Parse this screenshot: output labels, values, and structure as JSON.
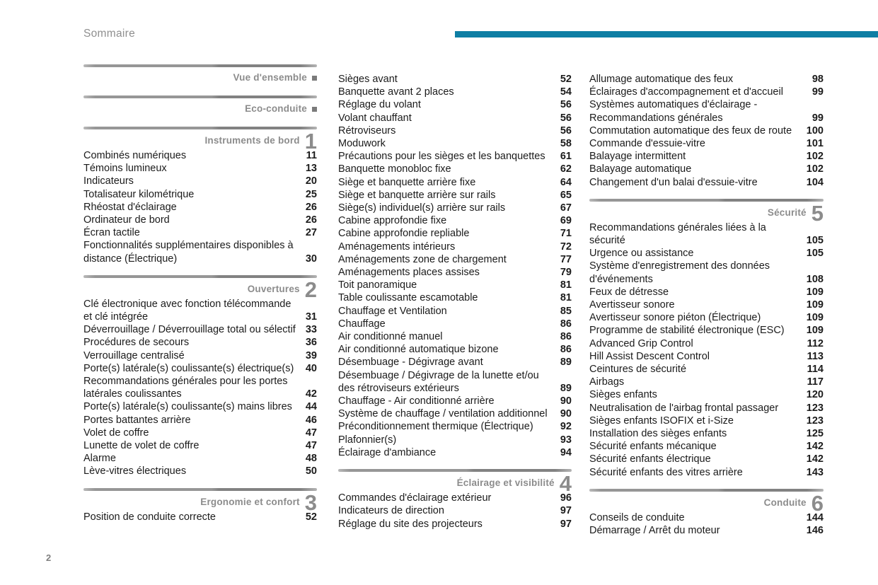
{
  "header": {
    "title": "Sommaire"
  },
  "footer": {
    "page_number": "2"
  },
  "accent_color": "#0e7ea4",
  "toc": {
    "columns": [
      {
        "blocks": [
          {
            "kind": "section",
            "title": "Vue d'ensemble",
            "marker": "square",
            "items": []
          },
          {
            "kind": "section",
            "title": "Eco-conduite",
            "marker": "square",
            "items": []
          },
          {
            "kind": "section",
            "title": "Instruments de bord",
            "number": "1",
            "items": [
              {
                "label": "Combinés numériques",
                "page": "11"
              },
              {
                "label": "Témoins lumineux",
                "page": "13"
              },
              {
                "label": "Indicateurs",
                "page": "20"
              },
              {
                "label": "Totalisateur kilométrique",
                "page": "25"
              },
              {
                "label": "Rhéostat d'éclairage",
                "page": "26"
              },
              {
                "label": "Ordinateur de bord",
                "page": "26"
              },
              {
                "label": "Écran tactile",
                "page": "27"
              },
              {
                "label": "Fonctionnalités supplémentaires disponibles à distance (Électrique)",
                "page": "30"
              }
            ]
          },
          {
            "kind": "section",
            "title": "Ouvertures",
            "number": "2",
            "items": [
              {
                "label": "Clé électronique avec fonction télécommande et clé intégrée",
                "page": "31"
              },
              {
                "label": "Déverrouillage / Déverrouillage total ou sélectif",
                "page": "33"
              },
              {
                "label": "Procédures de secours",
                "page": "36"
              },
              {
                "label": "Verrouillage centralisé",
                "page": "39"
              },
              {
                "label": "Porte(s) latérale(s) coulissante(s) électrique(s)",
                "page": "40"
              },
              {
                "label": "Recommandations générales pour les portes latérales coulissantes",
                "page": "42"
              },
              {
                "label": "Porte(s) latérale(s) coulissante(s) mains libres",
                "page": "44"
              },
              {
                "label": "Portes battantes arrière",
                "page": "46"
              },
              {
                "label": "Volet de coffre",
                "page": "47"
              },
              {
                "label": "Lunette de volet de coffre",
                "page": "47"
              },
              {
                "label": "Alarme",
                "page": "48"
              },
              {
                "label": "Lève-vitres électriques",
                "page": "50"
              }
            ]
          },
          {
            "kind": "section",
            "title": "Ergonomie et confort",
            "number": "3",
            "items": [
              {
                "label": "Position de conduite correcte",
                "page": "52"
              }
            ]
          }
        ]
      },
      {
        "blocks": [
          {
            "kind": "items",
            "items": [
              {
                "label": "Sièges avant",
                "page": "52"
              },
              {
                "label": "Banquette avant 2 places",
                "page": "54"
              },
              {
                "label": "Réglage du volant",
                "page": "56"
              },
              {
                "label": "Volant chauffant",
                "page": "56"
              },
              {
                "label": "Rétroviseurs",
                "page": "56"
              },
              {
                "label": "Moduwork",
                "page": "58"
              },
              {
                "label": "Précautions pour les sièges et les banquettes",
                "page": "61"
              },
              {
                "label": "Banquette monobloc fixe",
                "page": "62"
              },
              {
                "label": "Siège et banquette arrière fixe",
                "page": "64"
              },
              {
                "label": "Siège et banquette arrière sur rails",
                "page": "65"
              },
              {
                "label": "Siège(s) individuel(s) arrière sur rails",
                "page": "67"
              },
              {
                "label": "Cabine approfondie fixe",
                "page": "69"
              },
              {
                "label": "Cabine approfondie repliable",
                "page": "71"
              },
              {
                "label": "Aménagements intérieurs",
                "page": "72"
              },
              {
                "label": "Aménagements zone de chargement",
                "page": "77"
              },
              {
                "label": "Aménagements places assises",
                "page": "79"
              },
              {
                "label": "Toit panoramique",
                "page": "81"
              },
              {
                "label": "Table coulissante escamotable",
                "page": "81"
              },
              {
                "label": "Chauffage et Ventilation",
                "page": "85"
              },
              {
                "label": "Chauffage",
                "page": "86"
              },
              {
                "label": "Air conditionné manuel",
                "page": "86"
              },
              {
                "label": "Air conditionné automatique bizone",
                "page": "86"
              },
              {
                "label": "Désembuage - Dégivrage avant",
                "page": "89"
              },
              {
                "label": "Désembuage / Dégivrage de la lunette et/ou des rétroviseurs extérieurs",
                "page": "89"
              },
              {
                "label": "Chauffage - Air conditionné arrière",
                "page": "90"
              },
              {
                "label": "Système de chauffage / ventilation additionnel",
                "page": "90"
              },
              {
                "label": "Préconditionnement thermique (Électrique)",
                "page": "92"
              },
              {
                "label": "Plafonnier(s)",
                "page": "93"
              },
              {
                "label": "Éclairage d'ambiance",
                "page": "94"
              }
            ]
          },
          {
            "kind": "section",
            "title": "Éclairage et visibilité",
            "number": "4",
            "items": [
              {
                "label": "Commandes d'éclairage extérieur",
                "page": "96"
              },
              {
                "label": "Indicateurs de direction",
                "page": "97"
              },
              {
                "label": "Réglage du site des projecteurs",
                "page": "97"
              }
            ]
          }
        ]
      },
      {
        "blocks": [
          {
            "kind": "items",
            "items": [
              {
                "label": "Allumage automatique des feux",
                "page": "98"
              },
              {
                "label": "Éclairages d'accompagnement et d'accueil",
                "page": "99"
              },
              {
                "label": "Systèmes automatiques d'éclairage - Recommandations générales",
                "page": "99"
              },
              {
                "label": "Commutation automatique des feux de route",
                "page": "100"
              },
              {
                "label": "Commande d'essuie-vitre",
                "page": "101"
              },
              {
                "label": "Balayage intermittent",
                "page": "102"
              },
              {
                "label": "Balayage automatique",
                "page": "102"
              },
              {
                "label": "Changement d'un balai d'essuie-vitre",
                "page": "104"
              }
            ]
          },
          {
            "kind": "section",
            "title": "Sécurité",
            "number": "5",
            "items": [
              {
                "label": "Recommandations générales liées à la sécurité",
                "page": "105"
              },
              {
                "label": "Urgence ou assistance",
                "page": "105"
              },
              {
                "label": "Système d'enregistrement des données d'événements",
                "page": "108"
              },
              {
                "label": "Feux de détresse",
                "page": "109"
              },
              {
                "label": "Avertisseur sonore",
                "page": "109"
              },
              {
                "label": "Avertisseur sonore piéton (Électrique)",
                "page": "109"
              },
              {
                "label": "Programme de stabilité électronique (ESC)",
                "page": "109"
              },
              {
                "label": "Advanced Grip Control",
                "page": "112"
              },
              {
                "label": "Hill Assist Descent Control",
                "page": "113"
              },
              {
                "label": "Ceintures de sécurité",
                "page": "114"
              },
              {
                "label": "Airbags",
                "page": "117"
              },
              {
                "label": "Sièges enfants",
                "page": "120"
              },
              {
                "label": "Neutralisation de l'airbag frontal passager",
                "page": "123"
              },
              {
                "label": "Sièges enfants ISOFIX et i-Size",
                "page": "123"
              },
              {
                "label": "Installation des sièges enfants",
                "page": "125"
              },
              {
                "label": "Sécurité enfants mécanique",
                "page": "142"
              },
              {
                "label": "Sécurité enfants électrique",
                "page": "142"
              },
              {
                "label": "Sécurité enfants des vitres arrière",
                "page": "143"
              }
            ]
          },
          {
            "kind": "section",
            "title": "Conduite",
            "number": "6",
            "items": [
              {
                "label": "Conseils de conduite",
                "page": "144"
              },
              {
                "label": "Démarrage / Arrêt du moteur",
                "page": "146"
              }
            ]
          }
        ]
      }
    ]
  }
}
